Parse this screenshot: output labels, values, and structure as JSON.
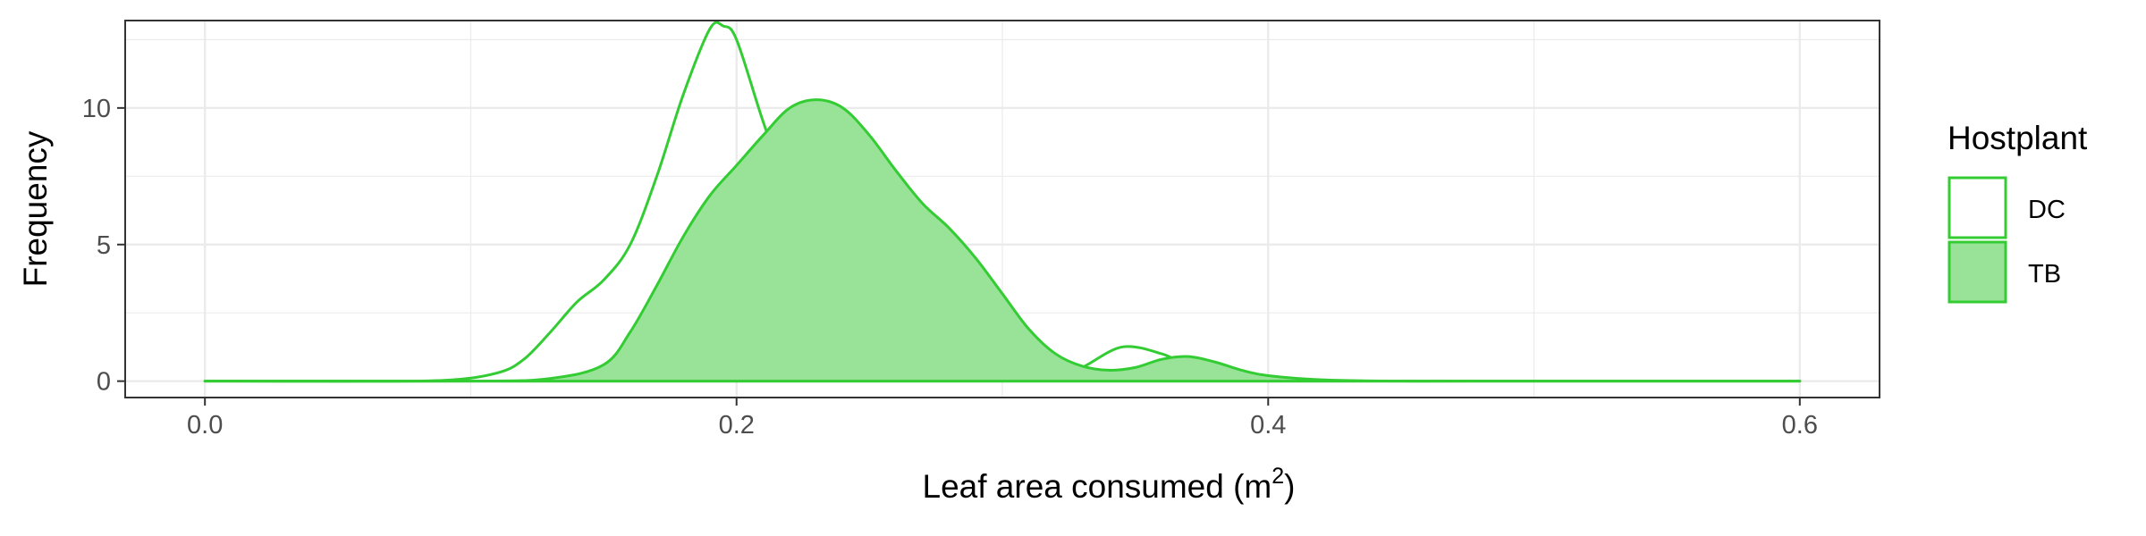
{
  "chart_data": {
    "type": "area",
    "title": "",
    "xlabel": "Leaf area consumed (m",
    "xlabel_superscript": "2",
    "xlabel_close": ")",
    "ylabel": "Frequency",
    "xlim": [
      -0.03,
      0.63
    ],
    "ylim": [
      -0.6,
      13.2
    ],
    "x_ticks": [
      0.0,
      0.2,
      0.4,
      0.6
    ],
    "x_tick_labels": [
      "0.0",
      "0.2",
      "0.4",
      "0.6"
    ],
    "y_ticks": [
      0,
      5,
      10
    ],
    "y_tick_labels": [
      "0",
      "5",
      "10"
    ],
    "grid": true,
    "legend": {
      "title": "Hostplant",
      "position": "right",
      "entries": [
        "DC",
        "TB"
      ]
    },
    "colors": {
      "line": "#33cc33",
      "fill": "#99e399",
      "grid": "#ebebeb",
      "panel_border": "#333333",
      "tick_text": "#4d4d4d"
    },
    "series": [
      {
        "name": "DC",
        "filled": false,
        "points": [
          [
            0.0,
            0.0
          ],
          [
            0.05,
            0.0
          ],
          [
            0.09,
            0.03
          ],
          [
            0.11,
            0.3
          ],
          [
            0.12,
            0.8
          ],
          [
            0.13,
            1.8
          ],
          [
            0.14,
            2.9
          ],
          [
            0.15,
            3.7
          ],
          [
            0.16,
            5.0
          ],
          [
            0.17,
            7.5
          ],
          [
            0.18,
            10.5
          ],
          [
            0.19,
            12.9
          ],
          [
            0.195,
            13.0
          ],
          [
            0.2,
            12.5
          ],
          [
            0.21,
            9.5
          ],
          [
            0.22,
            6.8
          ],
          [
            0.23,
            5.2
          ],
          [
            0.24,
            4.0
          ],
          [
            0.25,
            3.0
          ],
          [
            0.26,
            2.7
          ],
          [
            0.27,
            2.6
          ],
          [
            0.28,
            2.2
          ],
          [
            0.29,
            1.5
          ],
          [
            0.3,
            0.8
          ],
          [
            0.31,
            0.35
          ],
          [
            0.32,
            0.2
          ],
          [
            0.33,
            0.5
          ],
          [
            0.345,
            1.25
          ],
          [
            0.36,
            1.0
          ],
          [
            0.37,
            0.55
          ],
          [
            0.38,
            0.35
          ],
          [
            0.39,
            0.25
          ],
          [
            0.4,
            0.12
          ],
          [
            0.42,
            0.02
          ],
          [
            0.45,
            0.0
          ],
          [
            0.5,
            0.0
          ],
          [
            0.6,
            0.0
          ]
        ]
      },
      {
        "name": "TB",
        "filled": true,
        "points": [
          [
            0.0,
            0.0
          ],
          [
            0.1,
            0.0
          ],
          [
            0.13,
            0.1
          ],
          [
            0.15,
            0.6
          ],
          [
            0.16,
            1.8
          ],
          [
            0.17,
            3.5
          ],
          [
            0.18,
            5.3
          ],
          [
            0.19,
            6.8
          ],
          [
            0.2,
            7.9
          ],
          [
            0.21,
            9.0
          ],
          [
            0.22,
            10.0
          ],
          [
            0.23,
            10.3
          ],
          [
            0.24,
            10.0
          ],
          [
            0.25,
            9.0
          ],
          [
            0.26,
            7.7
          ],
          [
            0.27,
            6.5
          ],
          [
            0.28,
            5.6
          ],
          [
            0.29,
            4.5
          ],
          [
            0.3,
            3.2
          ],
          [
            0.31,
            1.9
          ],
          [
            0.32,
            1.0
          ],
          [
            0.33,
            0.55
          ],
          [
            0.34,
            0.4
          ],
          [
            0.35,
            0.5
          ],
          [
            0.36,
            0.8
          ],
          [
            0.37,
            0.9
          ],
          [
            0.38,
            0.7
          ],
          [
            0.39,
            0.4
          ],
          [
            0.4,
            0.2
          ],
          [
            0.42,
            0.05
          ],
          [
            0.45,
            0.0
          ],
          [
            0.5,
            0.0
          ],
          [
            0.6,
            0.0
          ]
        ]
      }
    ]
  }
}
